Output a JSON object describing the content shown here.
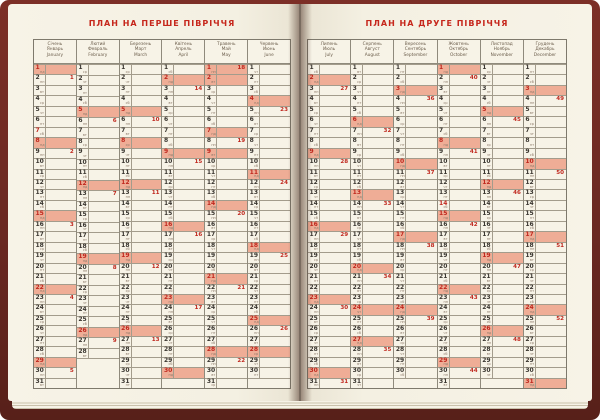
{
  "left_page": {
    "title": "ПЛАН НА ПЕРШЕ ПІВРІЧЧЯ"
  },
  "right_page": {
    "title": "ПЛАН НА ДРУГЕ ПІВРІЧЧЯ"
  },
  "weekday_abbrevs": [
    "пн",
    "вт",
    "ср",
    "чт",
    "пт",
    "сб",
    "нд"
  ],
  "colors": {
    "accent_red": "#c6271c",
    "highlight_pink": "#efad96",
    "page_cream": "#f4f0e2",
    "cover_maroon": "#6a2822"
  },
  "months": {
    "first_half": [
      {
        "uk": "Січень",
        "ru": "Январь",
        "en": "January",
        "days": 31,
        "start": 6,
        "pink": [
          1,
          8,
          15,
          22,
          29
        ],
        "red_only": [
          7
        ],
        "weeks": {
          "2": 1,
          "9": 2,
          "16": 3,
          "23": 4,
          "30": 5
        }
      },
      {
        "uk": "Лютий",
        "ru": "Февраль",
        "en": "February",
        "days": 28,
        "start": 2,
        "pink": [
          5,
          12,
          19,
          26
        ],
        "red_only": [],
        "weeks": {
          "6": 6,
          "13": 7,
          "20": 8,
          "27": 9
        }
      },
      {
        "uk": "Березень",
        "ru": "Март",
        "en": "March",
        "days": 31,
        "start": 2,
        "pink": [
          5,
          8,
          12,
          19,
          26
        ],
        "red_only": [],
        "weeks": {
          "6": 10,
          "13": 11,
          "20": 12,
          "27": 13
        }
      },
      {
        "uk": "Квітень",
        "ru": "Апрель",
        "en": "April",
        "days": 30,
        "start": 5,
        "pink": [
          2,
          9,
          16,
          23,
          30
        ],
        "red_only": [],
        "weeks": {
          "3": 14,
          "10": 15,
          "17": 16,
          "24": 17
        }
      },
      {
        "uk": "Травень",
        "ru": "Май",
        "en": "May",
        "days": 31,
        "start": 0,
        "pink": [
          1,
          2,
          7,
          9,
          14,
          21,
          28
        ],
        "red_only": [],
        "weeks": {
          "1": 18,
          "8": 19,
          "15": 20,
          "22": 21,
          "29": 22
        }
      },
      {
        "uk": "Червень",
        "ru": "Июнь",
        "en": "June",
        "days": 30,
        "start": 3,
        "pink": [
          4,
          11,
          18,
          25,
          28
        ],
        "red_only": [],
        "weeks": {
          "5": 23,
          "12": 24,
          "19": 25,
          "26": 26
        }
      }
    ],
    "second_half": [
      {
        "uk": "Липень",
        "ru": "Июль",
        "en": "July",
        "days": 31,
        "start": 5,
        "pink": [
          2,
          9,
          16,
          23,
          30
        ],
        "red_only": [],
        "weeks": {
          "3": 27,
          "10": 28,
          "17": 29,
          "24": 30,
          "31": 31
        }
      },
      {
        "uk": "Серпень",
        "ru": "Август",
        "en": "August",
        "days": 31,
        "start": 1,
        "pink": [
          6,
          13,
          20,
          24,
          27
        ],
        "red_only": [],
        "weeks": {
          "7": 32,
          "14": 33,
          "21": 34,
          "28": 35
        }
      },
      {
        "uk": "Вересень",
        "ru": "Сентябрь",
        "en": "September",
        "days": 30,
        "start": 4,
        "pink": [
          3,
          10,
          17,
          24
        ],
        "red_only": [],
        "weeks": {
          "4": 36,
          "11": 37,
          "18": 38,
          "25": 39
        }
      },
      {
        "uk": "Жовтень",
        "ru": "Октябрь",
        "en": "October",
        "days": 31,
        "start": 6,
        "pink": [
          1,
          8,
          15,
          22,
          29
        ],
        "red_only": [
          14
        ],
        "weeks": {
          "2": 40,
          "9": 41,
          "16": 42,
          "23": 43,
          "30": 44
        }
      },
      {
        "uk": "Листопад",
        "ru": "Ноябрь",
        "en": "November",
        "days": 30,
        "start": 2,
        "pink": [
          5,
          12,
          19,
          26
        ],
        "red_only": [],
        "weeks": {
          "6": 45,
          "13": 46,
          "20": 47,
          "27": 48
        }
      },
      {
        "uk": "Грудень",
        "ru": "Декабрь",
        "en": "December",
        "days": 31,
        "start": 4,
        "pink": [
          3,
          10,
          17,
          24,
          31
        ],
        "red_only": [],
        "weeks": {
          "4": 49,
          "11": 50,
          "18": 51,
          "25": 52
        }
      }
    ]
  }
}
